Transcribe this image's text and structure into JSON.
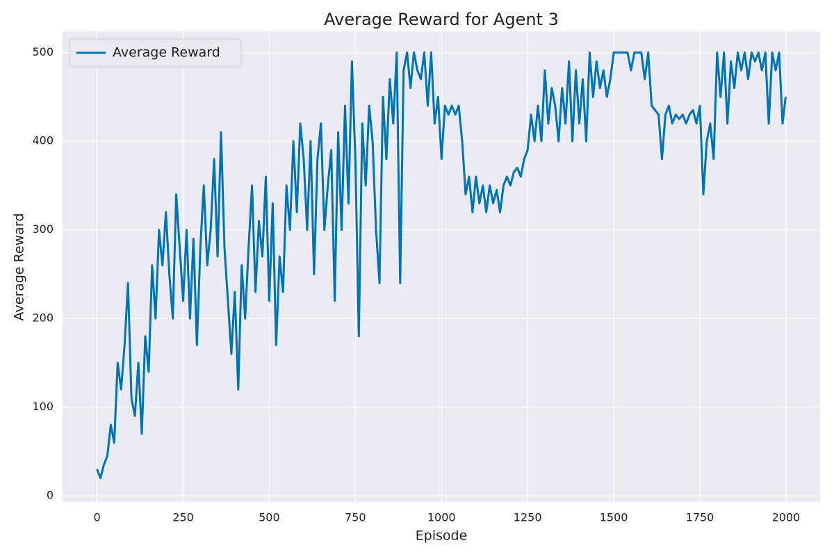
{
  "chart_data": {
    "type": "line",
    "title": "Average Reward for Agent 3",
    "xlabel": "Episode",
    "ylabel": "Average Reward",
    "legend": "upper left",
    "grid": true,
    "xlim": [
      -100,
      2099
    ],
    "ylim": [
      -7,
      524
    ],
    "xticks": [
      0,
      250,
      500,
      750,
      1000,
      1250,
      1500,
      1750,
      2000
    ],
    "yticks": [
      0,
      100,
      200,
      300,
      400,
      500
    ],
    "x": [
      0,
      10,
      20,
      30,
      40,
      50,
      60,
      70,
      80,
      90,
      100,
      110,
      120,
      130,
      140,
      150,
      160,
      170,
      180,
      190,
      200,
      210,
      220,
      230,
      240,
      250,
      260,
      270,
      280,
      290,
      300,
      310,
      320,
      330,
      340,
      350,
      360,
      370,
      380,
      390,
      400,
      410,
      420,
      430,
      440,
      450,
      460,
      470,
      480,
      490,
      500,
      510,
      520,
      530,
      540,
      550,
      560,
      570,
      580,
      590,
      600,
      610,
      620,
      630,
      640,
      650,
      660,
      670,
      680,
      690,
      700,
      710,
      720,
      730,
      740,
      750,
      760,
      770,
      780,
      790,
      800,
      810,
      820,
      830,
      840,
      850,
      860,
      870,
      880,
      890,
      900,
      910,
      920,
      930,
      940,
      950,
      960,
      970,
      980,
      990,
      1000,
      1010,
      1020,
      1030,
      1040,
      1050,
      1060,
      1070,
      1080,
      1090,
      1100,
      1110,
      1120,
      1130,
      1140,
      1150,
      1160,
      1170,
      1180,
      1190,
      1200,
      1210,
      1220,
      1230,
      1240,
      1250,
      1260,
      1270,
      1280,
      1290,
      1300,
      1310,
      1320,
      1330,
      1340,
      1350,
      1360,
      1370,
      1380,
      1390,
      1400,
      1410,
      1420,
      1430,
      1440,
      1450,
      1460,
      1470,
      1480,
      1490,
      1500,
      1510,
      1520,
      1530,
      1540,
      1550,
      1560,
      1570,
      1580,
      1590,
      1600,
      1610,
      1620,
      1630,
      1640,
      1650,
      1660,
      1670,
      1680,
      1690,
      1700,
      1710,
      1720,
      1730,
      1740,
      1750,
      1760,
      1770,
      1780,
      1790,
      1800,
      1810,
      1820,
      1830,
      1840,
      1850,
      1860,
      1870,
      1880,
      1890,
      1900,
      1910,
      1920,
      1930,
      1940,
      1950,
      1960,
      1970,
      1980,
      1990,
      1999
    ],
    "series": [
      {
        "name": "Average Reward",
        "color": "#0173b2",
        "values": [
          30,
          20,
          35,
          45,
          80,
          60,
          150,
          120,
          170,
          240,
          110,
          90,
          150,
          70,
          180,
          140,
          260,
          200,
          300,
          260,
          320,
          250,
          200,
          340,
          280,
          220,
          300,
          200,
          290,
          170,
          280,
          350,
          260,
          300,
          380,
          270,
          410,
          280,
          220,
          160,
          230,
          120,
          260,
          200,
          280,
          350,
          230,
          310,
          270,
          360,
          220,
          330,
          170,
          270,
          230,
          350,
          300,
          400,
          320,
          420,
          380,
          300,
          400,
          250,
          380,
          420,
          300,
          350,
          390,
          220,
          410,
          300,
          440,
          330,
          490,
          380,
          180,
          420,
          350,
          440,
          400,
          300,
          240,
          450,
          380,
          470,
          420,
          500,
          240,
          480,
          500,
          460,
          500,
          480,
          470,
          500,
          440,
          500,
          420,
          450,
          380,
          440,
          430,
          440,
          430,
          440,
          400,
          340,
          360,
          320,
          360,
          330,
          350,
          320,
          350,
          330,
          345,
          320,
          350,
          360,
          350,
          365,
          370,
          360,
          380,
          390,
          430,
          400,
          440,
          400,
          480,
          420,
          460,
          440,
          400,
          460,
          420,
          490,
          400,
          480,
          420,
          470,
          400,
          500,
          450,
          490,
          460,
          480,
          450,
          470,
          500,
          500,
          500,
          500,
          500,
          480,
          500,
          500,
          500,
          470,
          500,
          440,
          435,
          430,
          380,
          430,
          440,
          420,
          430,
          425,
          430,
          420,
          430,
          435,
          420,
          440,
          340,
          400,
          420,
          380,
          500,
          450,
          500,
          420,
          490,
          460,
          500,
          480,
          500,
          470,
          500,
          490,
          500,
          480,
          500,
          420,
          500,
          480,
          500,
          420,
          450
        ]
      }
    ]
  }
}
